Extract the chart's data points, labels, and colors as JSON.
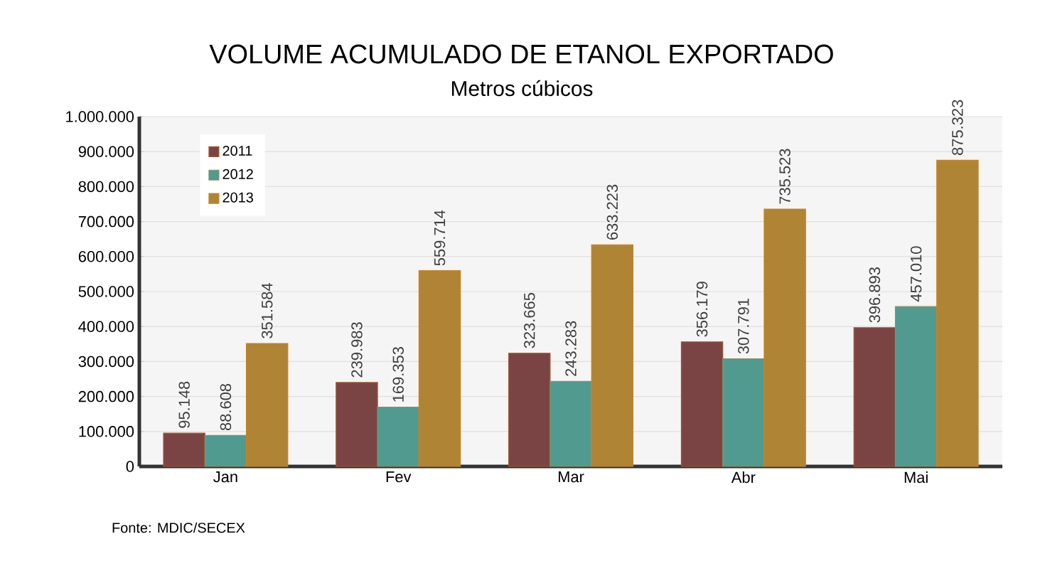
{
  "chart_data": {
    "type": "bar",
    "title": "VOLUME ACUMULADO DE ETANOL EXPORTADO",
    "subtitle": "Metros cúbicos",
    "categories": [
      "Jan",
      "Fev",
      "Mar",
      "Abr",
      "Mai"
    ],
    "series": [
      {
        "name": "2011",
        "color": "#7b4444",
        "values": [
          95148,
          239983,
          323665,
          356179,
          396893
        ],
        "value_labels": [
          "95.148",
          "239.983",
          "323.665",
          "356.179",
          "396.893"
        ]
      },
      {
        "name": "2012",
        "color": "#519a90",
        "values": [
          88608,
          169353,
          243283,
          307791,
          457010
        ],
        "value_labels": [
          "88.608",
          "169.353",
          "243.283",
          "307.791",
          "457.010"
        ]
      },
      {
        "name": "2013",
        "color": "#b08435",
        "values": [
          351584,
          559714,
          633223,
          735523,
          875323
        ],
        "value_labels": [
          "351.584",
          "559.714",
          "633.223",
          "735.523",
          "875.323"
        ]
      }
    ],
    "ylim": [
      0,
      1000000
    ],
    "yticks": [
      {
        "value": 0,
        "label": "0"
      },
      {
        "value": 100000,
        "label": "100.000"
      },
      {
        "value": 200000,
        "label": "200.000"
      },
      {
        "value": 300000,
        "label": "300.000"
      },
      {
        "value": 400000,
        "label": "400.000"
      },
      {
        "value": 500000,
        "label": "500.000"
      },
      {
        "value": 600000,
        "label": "600.000"
      },
      {
        "value": 700000,
        "label": "700.000"
      },
      {
        "value": 800000,
        "label": "800.000"
      },
      {
        "value": 900000,
        "label": "900.000"
      },
      {
        "value": 1000000,
        "label": "1.000.000"
      }
    ],
    "grid": "y",
    "legend": "top left",
    "annotations": [
      "Fonte: MDIC/SECEX"
    ]
  }
}
